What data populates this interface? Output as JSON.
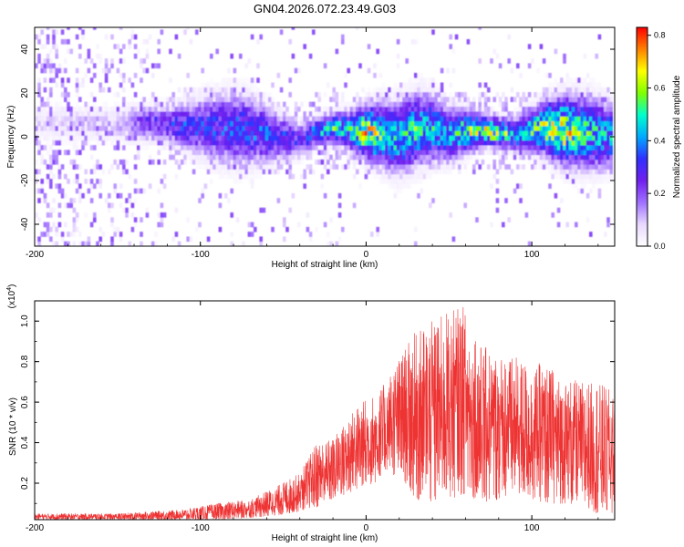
{
  "title": "GN04.2026.072.23.49.G03",
  "colors": {
    "line": "#ee3333",
    "axis": "#000000",
    "colormap": [
      "#ffffff",
      "#e8d8ff",
      "#a070ff",
      "#7020ee",
      "#3030ff",
      "#00aaff",
      "#00ffcc",
      "#80ff00",
      "#ffff00",
      "#ff8000",
      "#ff0000"
    ]
  },
  "chart_data": [
    {
      "type": "heatmap",
      "name": "spectrogram",
      "title": "GN04.2026.072.23.49.G03",
      "xlabel": "Height of straight line (km)",
      "ylabel": "Frequency (Hz)",
      "xlim": [
        -200,
        150
      ],
      "ylim": [
        -50,
        50
      ],
      "xticks": [
        -200,
        -100,
        0,
        100
      ],
      "yticks": [
        -40,
        -20,
        0,
        20,
        40
      ],
      "colorbar": {
        "label": "Normalized spectral amplitude",
        "range": [
          0.0,
          0.83
        ],
        "ticks": [
          "0.0",
          "0.2",
          "0.4",
          "0.6",
          "0.8"
        ]
      },
      "ridge": {
        "x": [
          -200,
          -150,
          -130,
          -110,
          -90,
          -70,
          -50,
          -40,
          -30,
          -20,
          -10,
          0,
          10,
          20,
          30,
          40,
          50,
          60,
          70,
          80,
          90,
          100,
          110,
          120,
          130,
          140,
          150
        ],
        "center_hz": [
          5,
          5,
          5,
          4,
          3,
          2,
          -1,
          -3,
          1,
          3,
          2,
          1,
          0,
          -2,
          2,
          3,
          0,
          1,
          2,
          1,
          0,
          2,
          3,
          2,
          1,
          0,
          -1
        ],
        "peak_amplitude": [
          0.1,
          0.12,
          0.3,
          0.35,
          0.35,
          0.4,
          0.35,
          0.3,
          0.45,
          0.55,
          0.5,
          0.75,
          0.6,
          0.5,
          0.55,
          0.5,
          0.45,
          0.6,
          0.65,
          0.7,
          0.5,
          0.55,
          0.65,
          0.75,
          0.6,
          0.5,
          0.45
        ]
      },
      "noise_region_x": [
        -200,
        -120
      ]
    },
    {
      "type": "line",
      "name": "snr",
      "xlabel": "Height of straight line (km)",
      "ylabel": "SNR (10 * v/v)",
      "y_multiplier": "(x10^4)",
      "y_multiplier_base": "(x10",
      "y_multiplier_exp": "4",
      "y_multiplier_close": ")",
      "xlim": [
        -200,
        150
      ],
      "ylim": [
        0.02,
        1.1
      ],
      "xticks": [
        -200,
        -100,
        0,
        100
      ],
      "yticks": [
        "0.2",
        "0.4",
        "0.6",
        "0.8",
        "1.0"
      ],
      "envelope": {
        "x": [
          -200,
          -150,
          -110,
          -90,
          -70,
          -55,
          -40,
          -30,
          -20,
          -10,
          0,
          10,
          20,
          30,
          40,
          50,
          60,
          70,
          80,
          90,
          100,
          110,
          120,
          130,
          140,
          150
        ],
        "low": [
          0.02,
          0.02,
          0.02,
          0.02,
          0.03,
          0.04,
          0.06,
          0.08,
          0.12,
          0.15,
          0.18,
          0.22,
          0.25,
          0.12,
          0.1,
          0.12,
          0.15,
          0.1,
          0.12,
          0.15,
          0.12,
          0.1,
          0.1,
          0.08,
          0.05,
          0.05
        ],
        "high": [
          0.05,
          0.05,
          0.07,
          0.1,
          0.12,
          0.18,
          0.25,
          0.4,
          0.42,
          0.55,
          0.62,
          0.68,
          0.82,
          0.95,
          1.0,
          1.05,
          1.08,
          0.88,
          0.85,
          0.82,
          0.8,
          0.78,
          0.72,
          0.7,
          0.7,
          0.65
        ]
      }
    }
  ]
}
